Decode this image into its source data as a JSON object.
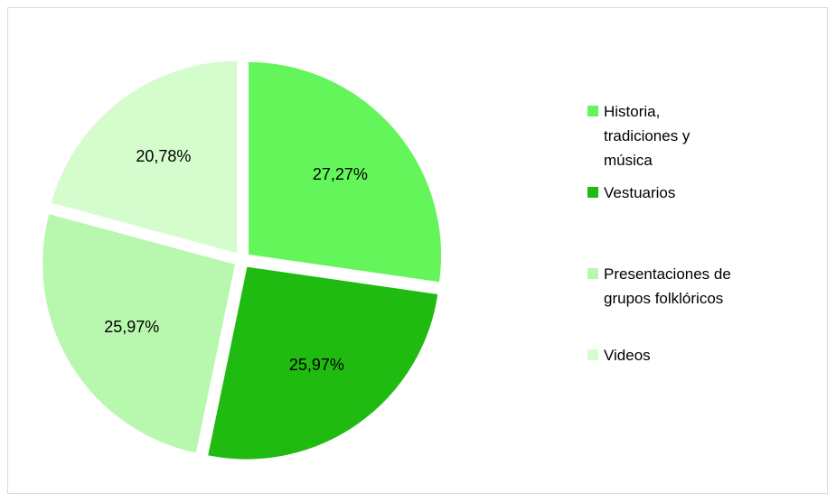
{
  "chart_data": {
    "type": "pie",
    "categories": [
      "Historia, tradiciones y música",
      "Vestuarios",
      "Presentaciones de grupos folklóricos",
      "Videos"
    ],
    "values": [
      27.27,
      25.97,
      25.97,
      20.78
    ],
    "value_labels": [
      "27,27%",
      "25,97%",
      "25,97%",
      "20,78%"
    ],
    "colors": [
      "#63f55a",
      "#20bb10",
      "#b8f8ae",
      "#d4fccd"
    ],
    "legend": "right"
  }
}
